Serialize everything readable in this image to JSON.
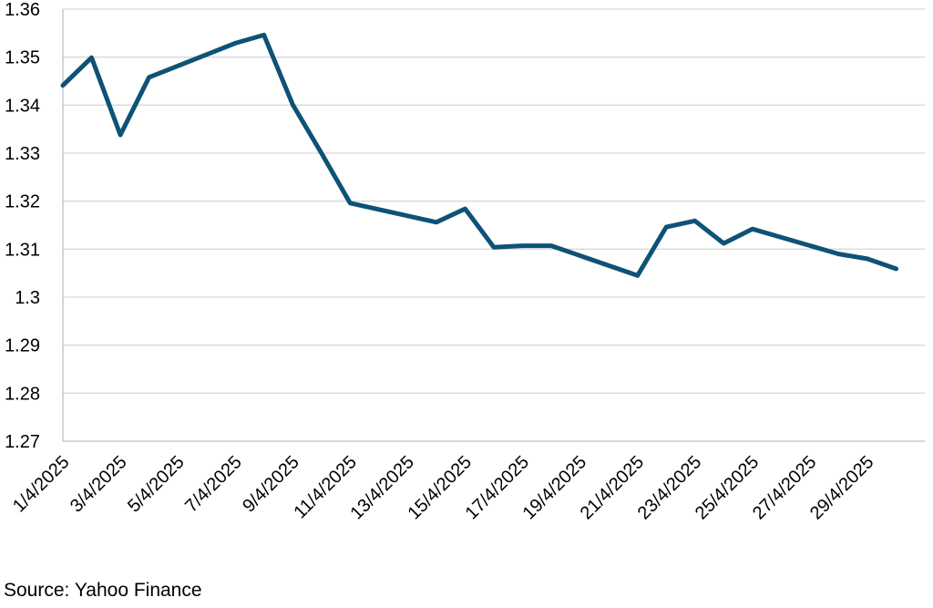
{
  "colors": {
    "line": "#0e5276",
    "grid": "#d9d9d9",
    "axis": "#bfbfbf",
    "text": "#000000",
    "background": "#ffffff"
  },
  "source": "Source: Yahoo Finance",
  "chart_data": {
    "type": "line",
    "title": "",
    "xlabel": "",
    "ylabel": "",
    "ylim": [
      1.27,
      1.36
    ],
    "yticks": [
      1.27,
      1.28,
      1.29,
      1.3,
      1.31,
      1.32,
      1.33,
      1.34,
      1.35,
      1.36
    ],
    "ytick_labels": [
      "1.27",
      "1.28",
      "1.29",
      "1.3",
      "1.31",
      "1.32",
      "1.33",
      "1.34",
      "1.35",
      "1.36"
    ],
    "xlim": [
      "1/4/2025",
      "30/4/2025"
    ],
    "xtick_labels": [
      "1/4/2025",
      "3/4/2025",
      "5/4/2025",
      "7/4/2025",
      "9/4/2025",
      "11/4/2025",
      "13/4/2025",
      "15/4/2025",
      "17/4/2025",
      "19/4/2025",
      "21/4/2025",
      "23/4/2025",
      "25/4/2025",
      "27/4/2025",
      "29/4/2025"
    ],
    "grid": true,
    "legend": "none",
    "series": [
      {
        "x": [
          "1/4/2025",
          "2/4/2025",
          "3/4/2025",
          "4/4/2025",
          "7/4/2025",
          "8/4/2025",
          "9/4/2025",
          "10/4/2025",
          "11/4/2025",
          "14/4/2025",
          "15/4/2025",
          "16/4/2025",
          "17/4/2025",
          "18/4/2025",
          "21/4/2025",
          "22/4/2025",
          "23/4/2025",
          "24/4/2025",
          "25/4/2025",
          "28/4/2025",
          "29/4/2025",
          "30/4/2025"
        ],
        "values": [
          1.3441,
          1.3499,
          1.3338,
          1.3458,
          1.3529,
          1.3546,
          1.3401,
          1.33,
          1.3196,
          1.3156,
          1.3184,
          1.3104,
          1.3107,
          1.3107,
          1.3045,
          1.3146,
          1.3159,
          1.3112,
          1.3142,
          1.309,
          1.308,
          1.3059
        ]
      }
    ]
  }
}
